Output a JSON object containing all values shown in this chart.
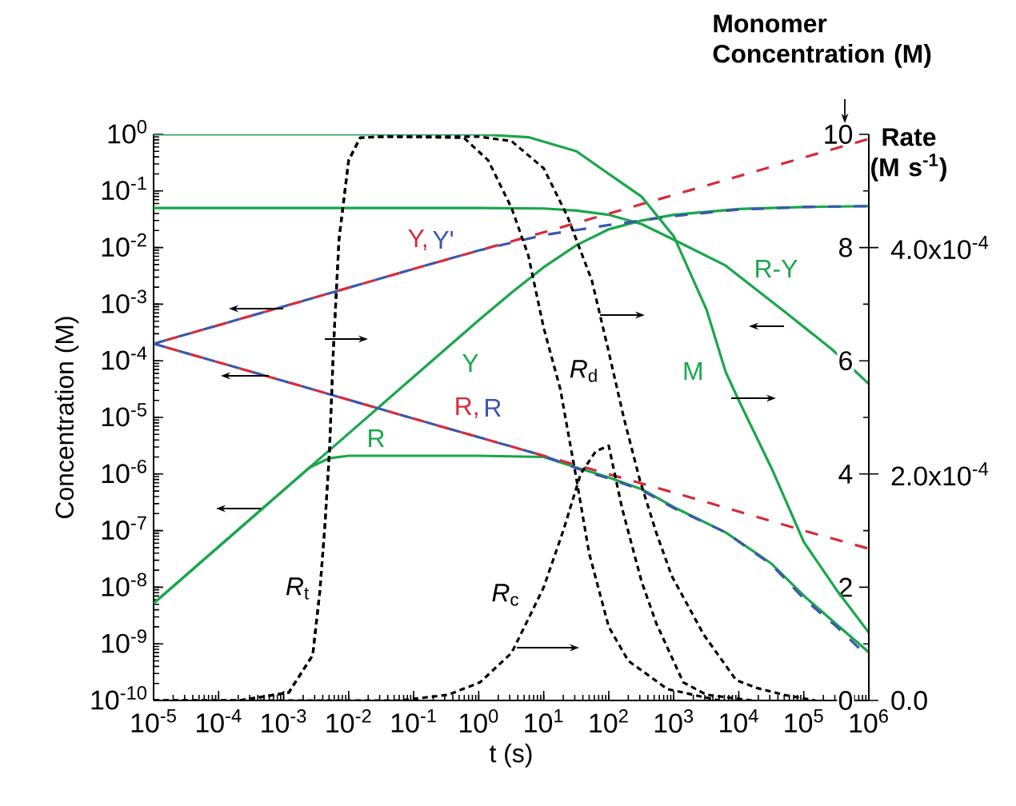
{
  "chart_data": {
    "type": "line",
    "xlabel": "t (s)",
    "ylabel": "Concentration (M)",
    "y2label": "Monomer Concentration (M)",
    "y3label": "Rate (M s$^{-1}$)",
    "log": "xy",
    "xlim": [
      1e-05,
      1000000.0
    ],
    "xticks": [
      {
        "value": 1e-05,
        "label": "10$^{-5}$"
      },
      {
        "value": 0.0001,
        "label": "10$^{-4}$"
      },
      {
        "value": 0.001,
        "label": "10$^{-3}$"
      },
      {
        "value": 0.01,
        "label": "10$^{-2}$"
      },
      {
        "value": 0.1,
        "label": "10$^{-1}$"
      },
      {
        "value": 1,
        "label": "10$^{0}$"
      },
      {
        "value": 10,
        "label": "10$^{1}$"
      },
      {
        "value": 100,
        "label": "10$^{2}$"
      },
      {
        "value": 1000,
        "label": "10$^{3}$"
      },
      {
        "value": 10000,
        "label": "10$^{4}$"
      },
      {
        "value": 100000,
        "label": "10$^{5}$"
      },
      {
        "value": 1000000,
        "label": "10$^{6}$"
      }
    ],
    "ylim": [
      1e-10,
      1
    ],
    "yticks": [
      {
        "value": 1e-10,
        "label": "10$^{-10}$"
      },
      {
        "value": 1e-09,
        "label": "10$^{-9}$"
      },
      {
        "value": 1e-08,
        "label": "10$^{-8}$"
      },
      {
        "value": 1e-07,
        "label": "10$^{-7}$"
      },
      {
        "value": 1e-06,
        "label": "10$^{-6}$"
      },
      {
        "value": 1e-05,
        "label": "10$^{-5}$"
      },
      {
        "value": 0.0001,
        "label": "10$^{-4}$"
      },
      {
        "value": 0.001,
        "label": "10$^{-3}$"
      },
      {
        "value": 0.01,
        "label": "10$^{-2}$"
      },
      {
        "value": 0.1,
        "label": "10$^{-1}$"
      },
      {
        "value": 1,
        "label": "10$^{0}$"
      }
    ],
    "y2lim": [
      0,
      10
    ],
    "y2ticks": [
      0,
      2,
      4,
      6,
      8,
      10
    ],
    "y3lim": [
      0,
      0.0005
    ],
    "y3ticks": [
      {
        "value": 0,
        "label": "0.0"
      },
      {
        "value": 0.0002,
        "label": "2.0x10$^{-4}$"
      },
      {
        "value": 0.0004,
        "label": "4.0x10$^{-4}$"
      }
    ],
    "series": [
      {
        "name": "Y",
        "color": "#19a64b",
        "line_style": "solid",
        "x": [
          1e-05,
          0.0001,
          0.001,
          0.01,
          0.1,
          1,
          3.2,
          10,
          32,
          100,
          320,
          1000,
          10000,
          100000,
          1000000
        ],
        "values": [
          5.2e-09,
          5.2e-08,
          5.2e-07,
          5.2e-06,
          5.2e-05,
          0.00052,
          0.0016,
          0.0045,
          0.011,
          0.021,
          0.03,
          0.038,
          0.048,
          0.052,
          0.054
        ]
      },
      {
        "name": "R",
        "color": "#19a64b",
        "line_style": "solid",
        "x": [
          1e-05,
          0.0001,
          0.001,
          0.0025,
          0.005,
          0.01,
          0.1,
          1,
          10,
          32,
          100,
          320,
          1000,
          6300,
          32000,
          100000,
          320000,
          1000000
        ],
        "values": [
          5.2e-09,
          5.2e-08,
          5.2e-07,
          1.3e-06,
          1.9e-06,
          2.1e-06,
          2.1e-06,
          2.1e-06,
          2e-06,
          1.3e-06,
          8.7e-07,
          5.4e-07,
          2.6e-07,
          9.3e-08,
          2.6e-08,
          7.1e-09,
          2.2e-09,
          7.1e-10
        ]
      },
      {
        "name": "R-Y",
        "color": "#19a64b",
        "line_style": "solid",
        "x": [
          1e-05,
          1,
          10,
          32,
          100,
          320,
          1000,
          6300,
          52000,
          270000,
          1000000
        ],
        "values": [
          0.05,
          0.05,
          0.049,
          0.045,
          0.038,
          0.026,
          0.0138,
          0.0048,
          0.00072,
          0.00016,
          3.9e-05
        ]
      },
      {
        "name": "Y,",
        "color": "#d62a3a",
        "line_style": "dashed",
        "x": [
          1e-05,
          0.001,
          0.1,
          10,
          1000,
          100000,
          1000000
        ],
        "values": [
          0.0002,
          0.00091,
          0.0042,
          0.0186,
          0.085,
          0.39,
          0.83
        ]
      },
      {
        "name": "Y'",
        "color": "#3b56b0",
        "line_style": "dashed",
        "x": [
          1e-05,
          0.001,
          0.1,
          1,
          10,
          100,
          1000,
          10000,
          100000,
          1000000
        ],
        "values": [
          0.0002,
          0.00091,
          0.0042,
          0.0089,
          0.0166,
          0.025,
          0.036,
          0.047,
          0.052,
          0.054
        ]
      },
      {
        "name": "R,",
        "color": "#d62a3a",
        "line_style": "dashed",
        "x": [
          1e-05,
          0.001,
          0.1,
          10,
          1000,
          100000,
          1000000
        ],
        "values": [
          0.0002,
          4.4e-05,
          9.5e-06,
          2.1e-06,
          4.7e-07,
          1e-07,
          4.8e-08
        ]
      },
      {
        "name": "R",
        "color": "#3b56b0",
        "line_style": "dashed",
        "x": [
          1e-05,
          0.001,
          0.1,
          10,
          32,
          100,
          320,
          1000,
          6300,
          32000,
          100000,
          320000,
          1000000
        ],
        "values": [
          0.0002,
          4.4e-05,
          9.5e-06,
          2.1e-06,
          1.26e-06,
          8.3e-07,
          5.2e-07,
          2.5e-07,
          9.3e-08,
          2.5e-08,
          6.3e-09,
          2e-09,
          5.8e-10
        ]
      },
      {
        "name": "M",
        "color": "#19a64b",
        "line_style": "solid",
        "axis": "y2",
        "x": [
          1e-05,
          1,
          5.8,
          32,
          100,
          320,
          1000,
          3200,
          6300,
          10000,
          32000,
          100000,
          320000,
          1000000
        ],
        "values": [
          10,
          10,
          9.95,
          9.7,
          9.3,
          8.9,
          8.2,
          6.9,
          5.8,
          5.3,
          4.1,
          2.8,
          1.95,
          1.2
        ]
      },
      {
        "name": "*R*$_{t}$",
        "color": "#000000",
        "line_style": "dotted",
        "axis": "y3",
        "x": [
          1e-05,
          0.00021,
          0.0012,
          0.0028,
          0.0036,
          0.0043,
          0.0051,
          0.0058,
          0.0071,
          0.01,
          0.015,
          0.035,
          0.59,
          1.4,
          3.2,
          5.8,
          10,
          18,
          32,
          50,
          100,
          200,
          800,
          5000
        ],
        "values": [
          0,
          0,
          7e-06,
          4e-05,
          9.6e-05,
          0.000153,
          0.000223,
          0.000308,
          0.000407,
          0.000477,
          0.000497,
          0.000498,
          0.000497,
          0.000477,
          0.000435,
          0.000393,
          0.000329,
          0.000275,
          0.000195,
          0.00013,
          6.5e-05,
          3.5e-05,
          1e-05,
          0
        ]
      },
      {
        "name": "*R*$_{c}$",
        "color": "#000000",
        "line_style": "dotted",
        "axis": "y3",
        "x": [
          1e-05,
          0.062,
          0.34,
          1.05,
          3.2,
          5.8,
          10,
          20,
          37,
          63,
          100,
          160,
          320,
          540,
          1400,
          3200,
          16000
        ],
        "values": [
          0,
          0,
          5e-06,
          1.6e-05,
          4.2e-05,
          7.2e-05,
          0.0001,
          0.00015,
          0.0002,
          0.00022,
          0.000225,
          0.00017,
          0.000105,
          6.8e-05,
          1.6e-05,
          5e-06,
          0
        ]
      },
      {
        "name": "*R*$_{d}$",
        "color": "#000000",
        "line_style": "dotted",
        "axis": "y3",
        "x": [
          1e-05,
          0.00021,
          0.0012,
          0.0028,
          0.0036,
          0.0043,
          0.0051,
          0.0058,
          0.0071,
          0.01,
          0.015,
          0.035,
          1,
          3.2,
          10,
          23,
          55,
          98,
          170,
          300,
          540,
          930,
          2900,
          9100,
          19000,
          49000,
          150000
        ],
        "values": [
          0,
          0,
          7e-06,
          4e-05,
          9.6e-05,
          0.000153,
          0.000223,
          0.000308,
          0.000407,
          0.000477,
          0.000497,
          0.000498,
          0.000498,
          0.000494,
          0.00047,
          0.000428,
          0.000371,
          0.00031,
          0.00025,
          0.000195,
          0.000148,
          0.00011,
          5.8e-05,
          1.8e-05,
          1.1e-05,
          5e-06,
          0
        ]
      }
    ]
  }
}
